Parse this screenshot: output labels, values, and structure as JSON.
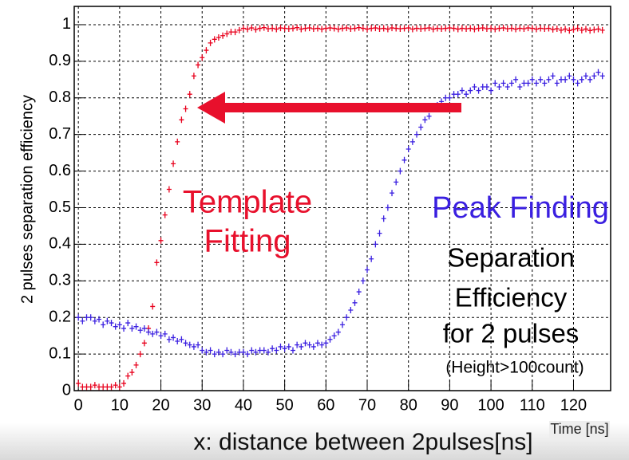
{
  "chart_data": {
    "type": "scatter",
    "ylabel": "2 pulses separation efficiency",
    "xlabel": "Time [ns]",
    "caption": "x: distance between 2pulses[ns]",
    "annotations": [
      "Template",
      "Fitting",
      "Peak Finding",
      "Separation",
      "Efficiency",
      "for 2 pulses",
      "(Height>100count)"
    ],
    "xlim": [
      -1,
      129
    ],
    "ylim": [
      0,
      1.05
    ],
    "xticks": [
      0,
      10,
      20,
      30,
      40,
      50,
      60,
      70,
      80,
      90,
      100,
      110,
      120
    ],
    "yticks": [
      0,
      0.1,
      0.2,
      0.3,
      0.4,
      0.5,
      0.6,
      0.7,
      0.8,
      0.9,
      1
    ],
    "grid": true,
    "x": [
      0,
      1,
      2,
      3,
      4,
      5,
      6,
      7,
      8,
      9,
      10,
      11,
      12,
      13,
      14,
      15,
      16,
      17,
      18,
      19,
      20,
      21,
      22,
      23,
      24,
      25,
      26,
      27,
      28,
      29,
      30,
      31,
      32,
      33,
      34,
      35,
      36,
      37,
      38,
      39,
      40,
      41,
      42,
      43,
      44,
      45,
      46,
      47,
      48,
      49,
      50,
      51,
      52,
      53,
      54,
      55,
      56,
      57,
      58,
      59,
      60,
      61,
      62,
      63,
      64,
      65,
      66,
      67,
      68,
      69,
      70,
      71,
      72,
      73,
      74,
      75,
      76,
      77,
      78,
      79,
      80,
      81,
      82,
      83,
      84,
      85,
      86,
      87,
      88,
      89,
      90,
      91,
      92,
      93,
      94,
      95,
      96,
      97,
      98,
      99,
      100,
      101,
      102,
      103,
      104,
      105,
      106,
      107,
      108,
      109,
      110,
      111,
      112,
      113,
      114,
      115,
      116,
      117,
      118,
      119,
      120,
      121,
      122,
      123,
      124,
      125,
      126,
      127
    ],
    "series": [
      {
        "name": "Template Fitting",
        "color": "#e8001c",
        "values": [
          0.02,
          0.01,
          0.01,
          0.01,
          0.015,
          0.01,
          0.01,
          0.01,
          0.01,
          0.015,
          0.01,
          0.02,
          0.04,
          0.05,
          0.07,
          0.1,
          0.13,
          0.17,
          0.23,
          0.35,
          0.41,
          0.48,
          0.55,
          0.62,
          0.68,
          0.74,
          0.77,
          0.81,
          0.86,
          0.89,
          0.91,
          0.93,
          0.95,
          0.96,
          0.965,
          0.97,
          0.975,
          0.98,
          0.98,
          0.985,
          0.99,
          0.988,
          0.991,
          0.987,
          0.99,
          0.992,
          0.989,
          0.99,
          0.988,
          0.991,
          0.99,
          0.989,
          0.99,
          0.992,
          0.988,
          0.99,
          0.991,
          0.989,
          0.99,
          0.988,
          0.99,
          0.991,
          0.99,
          0.988,
          0.99,
          0.991,
          0.989,
          0.99,
          0.992,
          0.99,
          0.988,
          0.99,
          0.991,
          0.989,
          0.99,
          0.988,
          0.991,
          0.99,
          0.989,
          0.99,
          0.991,
          0.988,
          0.99,
          0.989,
          0.99,
          0.991,
          0.988,
          0.99,
          0.989,
          0.99,
          0.991,
          0.99,
          0.988,
          0.99,
          0.989,
          0.99,
          0.988,
          0.99,
          0.991,
          0.989,
          0.99,
          0.988,
          0.99,
          0.991,
          0.989,
          0.99,
          0.988,
          0.99,
          0.989,
          0.991,
          0.99,
          0.988,
          0.99,
          0.989,
          0.99,
          0.987,
          0.989,
          0.985,
          0.988,
          0.984,
          0.987,
          0.99,
          0.985,
          0.988,
          0.984,
          0.986,
          0.988,
          0.985
        ]
      },
      {
        "name": "Peak Finding",
        "color": "#3a1fe0",
        "values": [
          0.2,
          0.19,
          0.2,
          0.2,
          0.19,
          0.195,
          0.18,
          0.19,
          0.185,
          0.175,
          0.18,
          0.17,
          0.185,
          0.17,
          0.175,
          0.165,
          0.17,
          0.16,
          0.155,
          0.16,
          0.15,
          0.155,
          0.14,
          0.145,
          0.135,
          0.14,
          0.13,
          0.125,
          0.12,
          0.125,
          0.11,
          0.105,
          0.11,
          0.1,
          0.105,
          0.1,
          0.11,
          0.105,
          0.1,
          0.105,
          0.105,
          0.1,
          0.11,
          0.105,
          0.11,
          0.11,
          0.105,
          0.115,
          0.11,
          0.12,
          0.115,
          0.12,
          0.11,
          0.125,
          0.12,
          0.13,
          0.125,
          0.12,
          0.13,
          0.125,
          0.13,
          0.14,
          0.15,
          0.16,
          0.18,
          0.2,
          0.22,
          0.24,
          0.27,
          0.3,
          0.33,
          0.36,
          0.4,
          0.43,
          0.47,
          0.5,
          0.54,
          0.57,
          0.6,
          0.63,
          0.66,
          0.68,
          0.7,
          0.72,
          0.74,
          0.75,
          0.77,
          0.78,
          0.79,
          0.8,
          0.8,
          0.81,
          0.81,
          0.82,
          0.81,
          0.82,
          0.83,
          0.82,
          0.83,
          0.83,
          0.82,
          0.84,
          0.83,
          0.84,
          0.83,
          0.84,
          0.85,
          0.83,
          0.84,
          0.84,
          0.85,
          0.84,
          0.85,
          0.84,
          0.85,
          0.86,
          0.84,
          0.85,
          0.85,
          0.86,
          0.85,
          0.84,
          0.85,
          0.86,
          0.85,
          0.86,
          0.87,
          0.86
        ]
      }
    ]
  }
}
